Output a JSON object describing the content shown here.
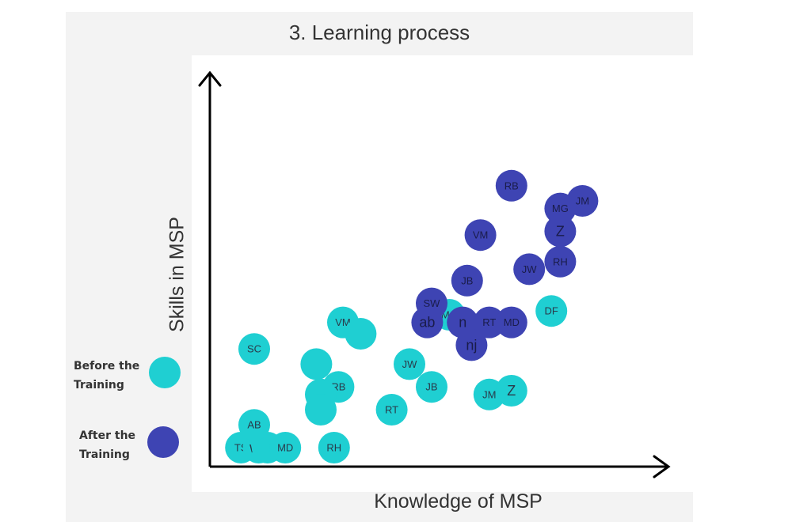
{
  "chart_data": {
    "type": "scatter",
    "title": "3. Learning process",
    "xlabel": "Knowledge of MSP",
    "ylabel": "Skills in MSP",
    "xlim": [
      0,
      100
    ],
    "ylim": [
      0,
      100
    ],
    "grid": false,
    "legend_position": "left",
    "series": [
      {
        "name": "Before the Training",
        "color": "#1fcfd2",
        "points": [
          {
            "label": "TS",
            "x": 7,
            "y": 5
          },
          {
            "label": "wg",
            "x": 11,
            "y": 5
          },
          {
            "label": "",
            "x": 13,
            "y": 5
          },
          {
            "label": "MD",
            "x": 17,
            "y": 5
          },
          {
            "label": "AB",
            "x": 10,
            "y": 11
          },
          {
            "label": "SC",
            "x": 10,
            "y": 31
          },
          {
            "label": "VM",
            "x": 30,
            "y": 38
          },
          {
            "label": "",
            "x": 34,
            "y": 35
          },
          {
            "label": "",
            "x": 24,
            "y": 27
          },
          {
            "label": "RB",
            "x": 29,
            "y": 21
          },
          {
            "label": "",
            "x": 25,
            "y": 19
          },
          {
            "label": "",
            "x": 25,
            "y": 15
          },
          {
            "label": "RH",
            "x": 28,
            "y": 5
          },
          {
            "label": "RT",
            "x": 41,
            "y": 15
          },
          {
            "label": "JW",
            "x": 45,
            "y": 27
          },
          {
            "label": "JB",
            "x": 50,
            "y": 21
          },
          {
            "label": "MG",
            "x": 54,
            "y": 40
          },
          {
            "label": "JM",
            "x": 63,
            "y": 19
          },
          {
            "label": "Z",
            "x": 68,
            "y": 20
          },
          {
            "label": "DF",
            "x": 77,
            "y": 41
          }
        ]
      },
      {
        "name": "After the Training",
        "color": "#3e44b3",
        "points": [
          {
            "label": "RB",
            "x": 68,
            "y": 74
          },
          {
            "label": "JM",
            "x": 84,
            "y": 70
          },
          {
            "label": "MG",
            "x": 79,
            "y": 68
          },
          {
            "label": "Z",
            "x": 79,
            "y": 62
          },
          {
            "label": "VM",
            "x": 61,
            "y": 61
          },
          {
            "label": "RH",
            "x": 79,
            "y": 54
          },
          {
            "label": "JW",
            "x": 72,
            "y": 52
          },
          {
            "label": "JB",
            "x": 58,
            "y": 49
          },
          {
            "label": "SW",
            "x": 50,
            "y": 43
          },
          {
            "label": "ab",
            "x": 49,
            "y": 38
          },
          {
            "label": "n",
            "x": 57,
            "y": 38
          },
          {
            "label": "RT",
            "x": 63,
            "y": 38
          },
          {
            "label": "MD",
            "x": 68,
            "y": 38
          },
          {
            "label": "nj",
            "x": 59,
            "y": 32
          }
        ]
      }
    ]
  }
}
